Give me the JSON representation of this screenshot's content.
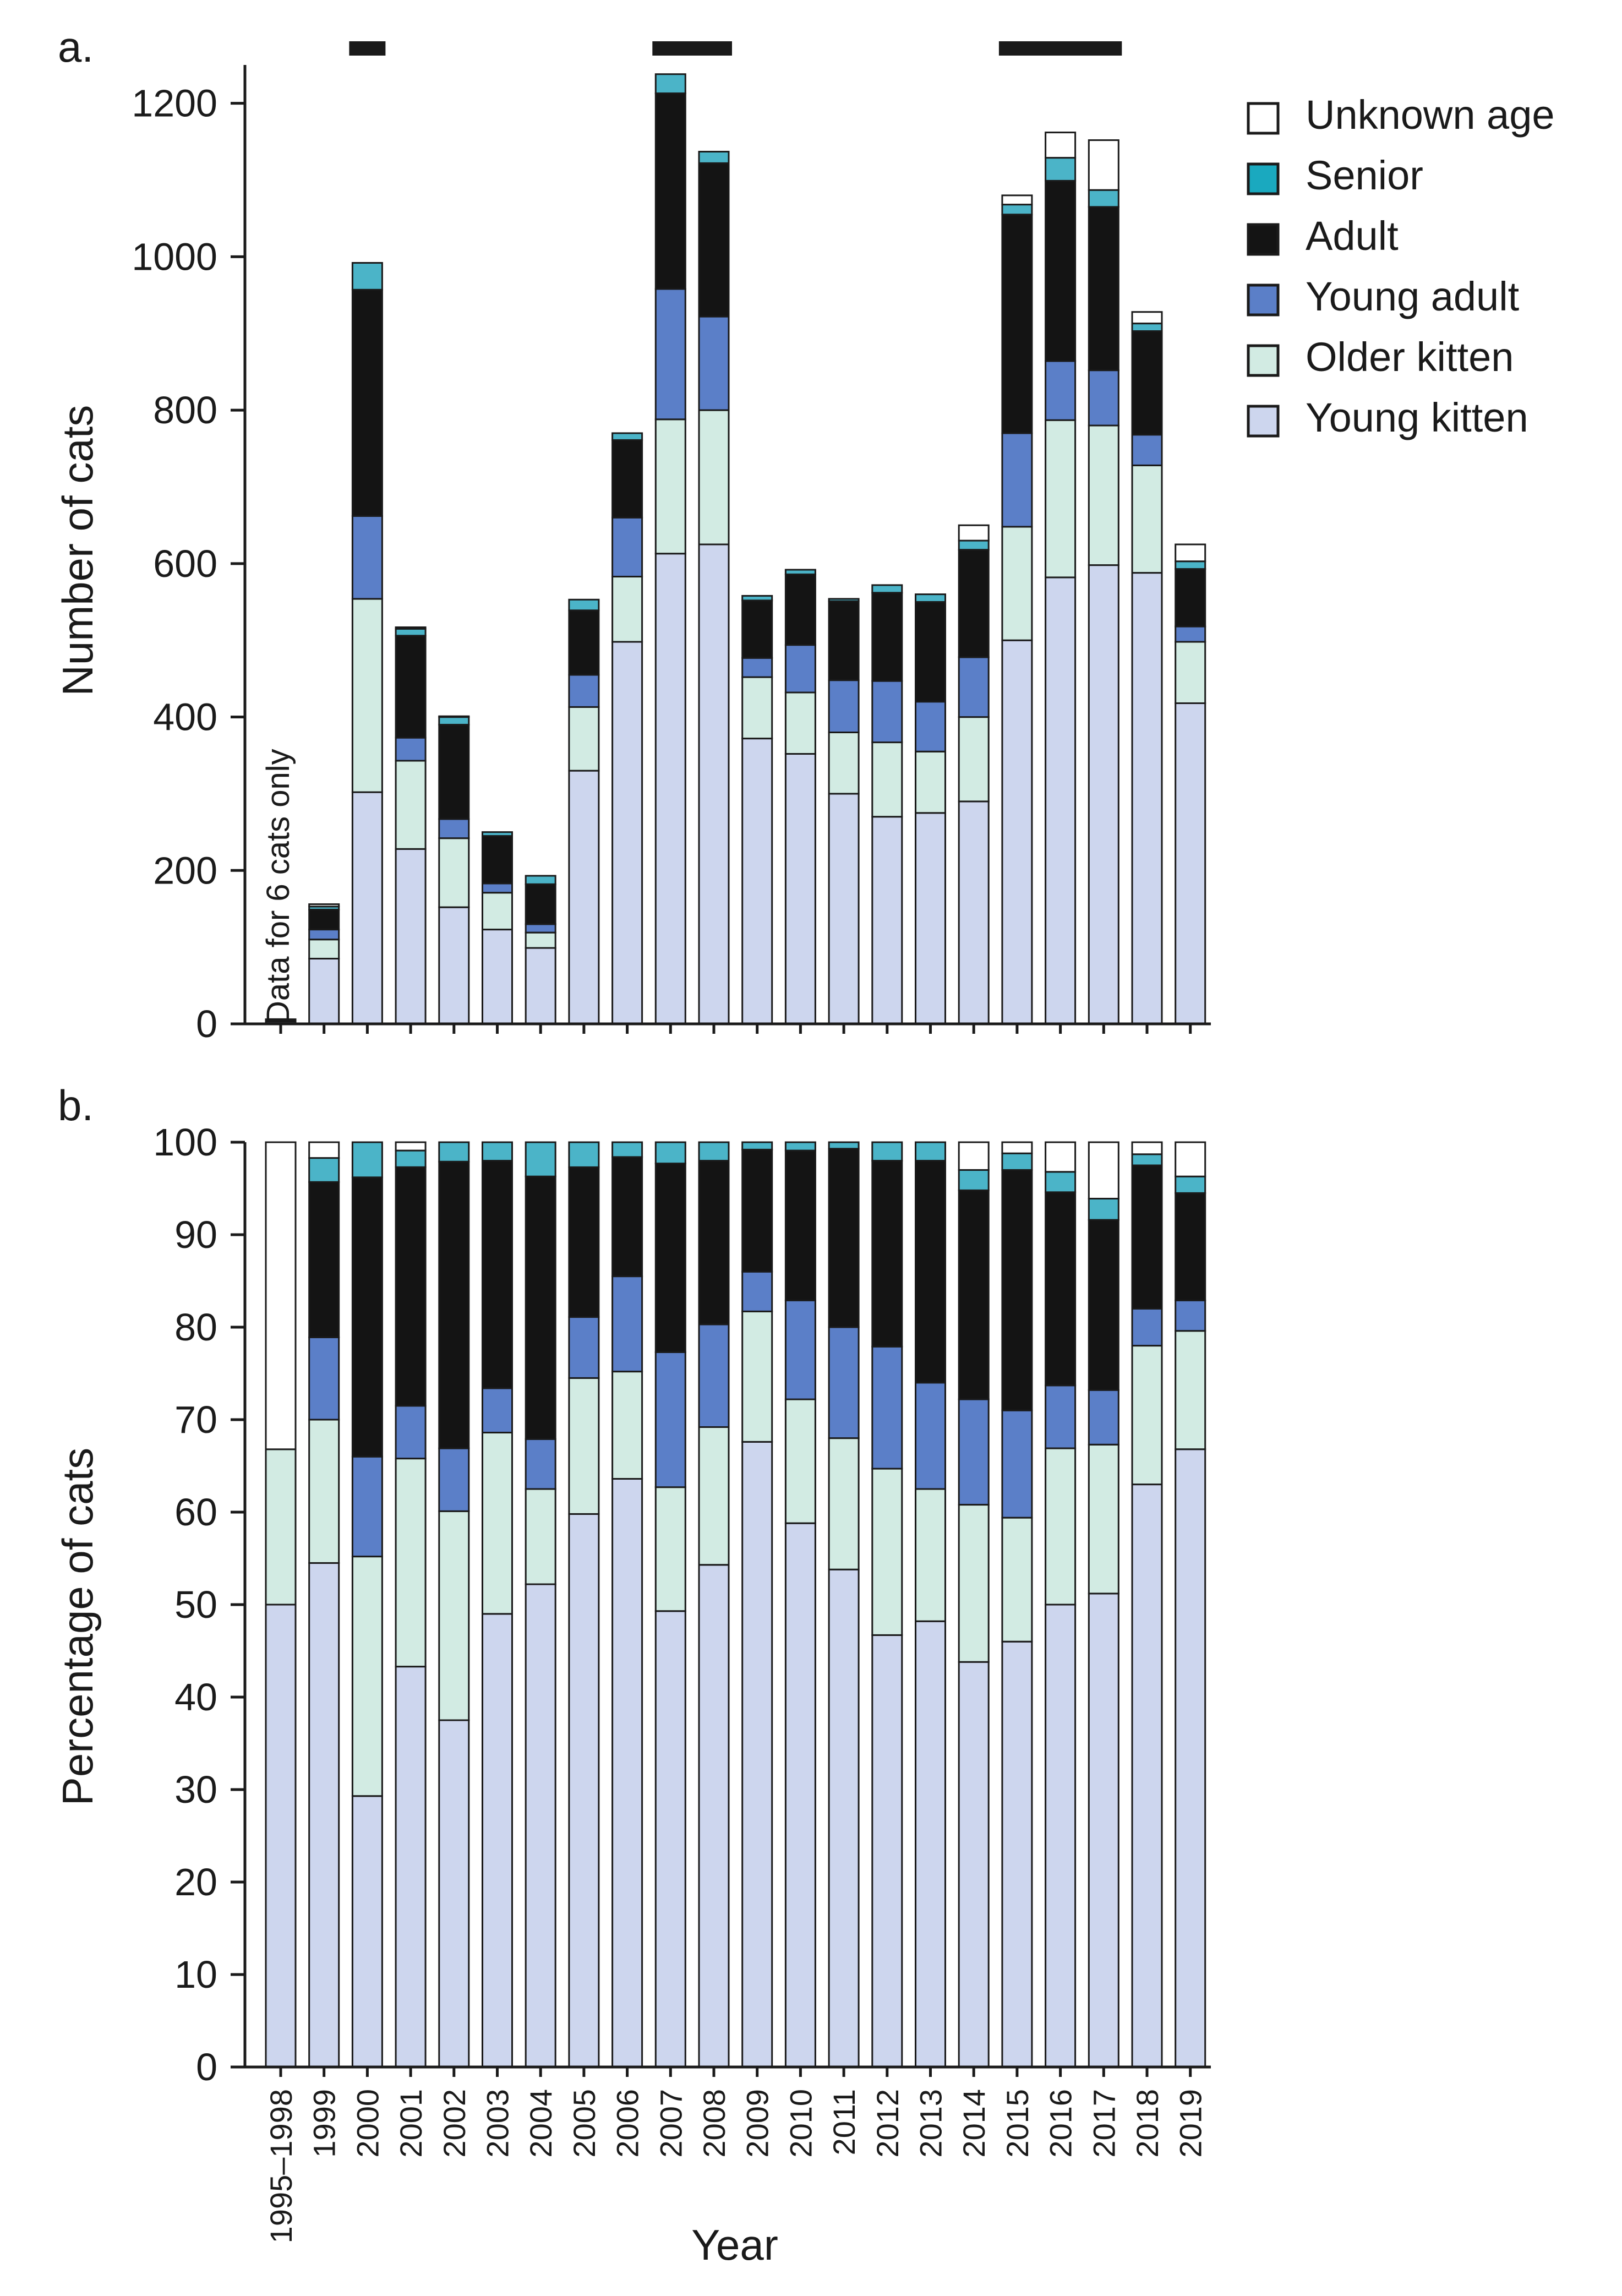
{
  "chart_data": [
    {
      "panel": "a.",
      "type": "bar",
      "stacked": true,
      "ylabel": "Number of cats",
      "xlabel": "",
      "ylim": [
        0,
        1250
      ],
      "yticks": [
        0,
        200,
        400,
        600,
        800,
        1000,
        1200
      ],
      "categories": [
        "1995–1998",
        "1999",
        "2000",
        "2001",
        "2002",
        "2003",
        "2004",
        "2005",
        "2006",
        "2007",
        "2008",
        "2009",
        "2010",
        "2011",
        "2012",
        "2013",
        "2014",
        "2015",
        "2016",
        "2017",
        "2018",
        "2019"
      ],
      "series": [
        {
          "name": "Young kitten",
          "color": "#cdd6ee",
          "values": [
            3,
            85,
            302,
            228,
            152,
            123,
            99,
            330,
            498,
            613,
            625,
            372,
            352,
            300,
            270,
            275,
            290,
            500,
            582,
            598,
            588,
            418
          ]
        },
        {
          "name": "Older kitten",
          "color": "#d2ebe3",
          "values": [
            1,
            25,
            252,
            115,
            90,
            48,
            20,
            83,
            85,
            175,
            175,
            80,
            80,
            80,
            97,
            80,
            110,
            148,
            205,
            182,
            140,
            80
          ]
        },
        {
          "name": "Young adult",
          "color": "#5b7fc8",
          "values": [
            0,
            13,
            108,
            30,
            25,
            12,
            11,
            42,
            77,
            170,
            122,
            25,
            62,
            68,
            80,
            65,
            78,
            122,
            77,
            72,
            40,
            20
          ]
        },
        {
          "name": "Adult",
          "color": "#141414",
          "values": [
            0,
            26,
            295,
            133,
            123,
            62,
            52,
            84,
            101,
            255,
            200,
            75,
            92,
            103,
            115,
            130,
            140,
            285,
            235,
            213,
            135,
            75
          ]
        },
        {
          "name": "Senior",
          "color": "#4bb4c8",
          "values": [
            0,
            4,
            35,
            9,
            10,
            5,
            11,
            14,
            9,
            25,
            15,
            6,
            6,
            3,
            10,
            10,
            12,
            13,
            30,
            22,
            10,
            10
          ]
        },
        {
          "name": "Unknown age",
          "color": "#ffffff",
          "values": [
            2,
            3,
            0,
            2,
            1,
            0,
            0,
            0,
            0,
            0,
            0,
            0,
            0,
            0,
            0,
            0,
            20,
            12,
            33,
            65,
            15,
            22
          ]
        }
      ],
      "bracket_years": [
        [
          "2000"
        ],
        [
          "2007",
          "2008"
        ],
        [
          "2015",
          "2016",
          "2017"
        ]
      ],
      "annotations": [
        "Data for 6 cats only"
      ]
    },
    {
      "panel": "b.",
      "type": "bar",
      "stacked": true,
      "ylabel": "Percentage of cats",
      "xlabel": "Year",
      "ylim": [
        0,
        100
      ],
      "yticks": [
        0,
        10,
        20,
        30,
        40,
        50,
        60,
        70,
        80,
        90,
        100
      ],
      "categories": [
        "1995–1998",
        "1999",
        "2000",
        "2001",
        "2002",
        "2003",
        "2004",
        "2005",
        "2006",
        "2007",
        "2008",
        "2009",
        "2010",
        "2011",
        "2012",
        "2013",
        "2014",
        "2015",
        "2016",
        "2017",
        "2018",
        "2019"
      ],
      "series": [
        {
          "name": "Young kitten",
          "color": "#cdd6ee",
          "values": [
            50,
            54.5,
            29.3,
            43.3,
            37.5,
            49,
            52.2,
            59.8,
            63.6,
            49.3,
            54.3,
            67.6,
            58.8,
            53.8,
            46.7,
            48.2,
            43.8,
            46,
            50,
            51.2,
            63,
            66.8
          ]
        },
        {
          "name": "Older kitten",
          "color": "#d2ebe3",
          "values": [
            16.8,
            15.5,
            25.9,
            22.5,
            22.6,
            19.6,
            10.3,
            14.7,
            11.6,
            13.4,
            14.9,
            14.1,
            13.4,
            14.2,
            18,
            14.3,
            17,
            13.4,
            16.9,
            16.1,
            15,
            12.8
          ]
        },
        {
          "name": "Young adult",
          "color": "#5b7fc8",
          "values": [
            0,
            8.9,
            10.8,
            5.7,
            6.8,
            4.8,
            5.4,
            6.6,
            10.3,
            14.6,
            11.1,
            4.3,
            10.7,
            12,
            13.2,
            11.5,
            11.4,
            11.6,
            6.8,
            5.9,
            4,
            3.3
          ]
        },
        {
          "name": "Adult",
          "color": "#141414",
          "values": [
            0,
            16.8,
            30.2,
            25.8,
            31,
            24.6,
            28.4,
            16.2,
            12.9,
            20.4,
            17.7,
            13.2,
            16.2,
            19.3,
            20.1,
            24,
            22.6,
            26,
            20.9,
            18.4,
            15.5,
            11.6
          ]
        },
        {
          "name": "Senior",
          "color": "#4bb4c8",
          "values": [
            0,
            2.6,
            3.8,
            1.8,
            2.1,
            2,
            3.7,
            2.7,
            1.6,
            2.3,
            2,
            0.8,
            0.9,
            0.7,
            2,
            2,
            2.2,
            1.8,
            2.2,
            2.3,
            1.2,
            1.8
          ]
        },
        {
          "name": "Unknown age",
          "color": "#ffffff",
          "values": [
            33.2,
            1.7,
            0,
            0.9,
            0,
            0,
            0,
            0,
            0,
            0,
            0,
            0,
            0,
            0,
            0,
            0,
            3,
            1.2,
            3.2,
            6.1,
            1.3,
            3.7
          ]
        }
      ]
    }
  ],
  "legend": {
    "items": [
      {
        "label": "Unknown age",
        "color": "#ffffff"
      },
      {
        "label": "Senior",
        "color": "#1aa9bf"
      },
      {
        "label": "Adult",
        "color": "#141414"
      },
      {
        "label": "Young adult",
        "color": "#5b7fc8"
      },
      {
        "label": "Older kitten",
        "color": "#d2ebe3"
      },
      {
        "label": "Young kitten",
        "color": "#cdd6ee"
      }
    ]
  }
}
